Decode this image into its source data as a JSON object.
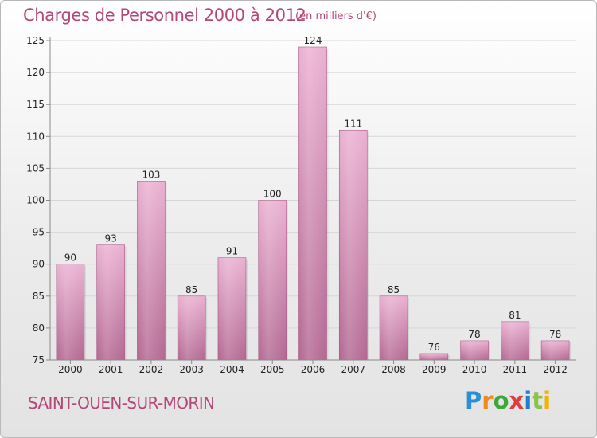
{
  "title": "Charges de Personnel 2000 à 2012",
  "unit_note": "(en milliers d'€)",
  "commune": "SAINT-OUEN-SUR-MORIN",
  "logo_text": "Proxiti",
  "colors": {
    "title": "#b4477a",
    "bar_light": "#e8a9cd",
    "bar_dark": "#b46a94",
    "axis": "#8a8a8a",
    "grid": "#d6d6d6",
    "logo": [
      "#2a8fd6",
      "#f08a1a",
      "#3aa83a",
      "#e23c3c",
      "#1f7fc9",
      "#8bc34a",
      "#f2b300"
    ]
  },
  "chart_data": {
    "type": "bar",
    "title": "Charges de Personnel 2000 à 2012",
    "subtitle": "(en milliers d'€)",
    "categories": [
      "2000",
      "2001",
      "2002",
      "2003",
      "2004",
      "2005",
      "2006",
      "2007",
      "2008",
      "2009",
      "2010",
      "2011",
      "2012"
    ],
    "values": [
      90,
      93,
      103,
      85,
      91,
      100,
      124,
      111,
      85,
      76,
      78,
      81,
      78
    ],
    "ylim": [
      75,
      125
    ],
    "yticks": [
      75,
      80,
      85,
      90,
      95,
      100,
      105,
      110,
      115,
      120,
      125
    ],
    "xlabel": "",
    "ylabel": "",
    "grid": true,
    "legend": "none"
  }
}
